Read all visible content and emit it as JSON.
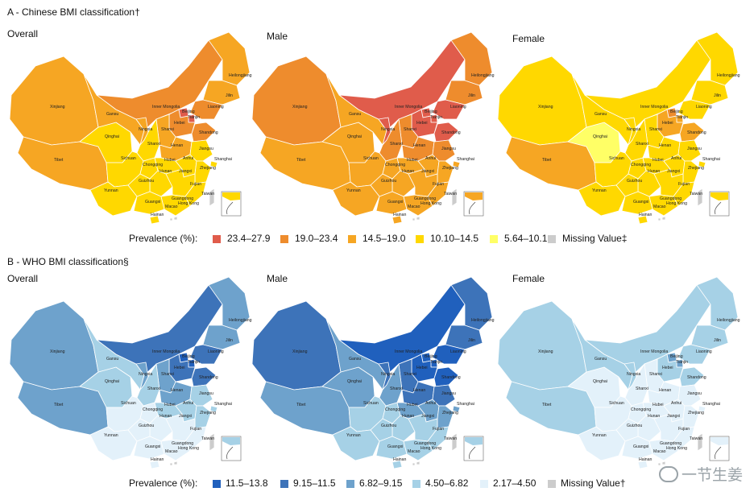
{
  "sections": [
    {
      "id": "A",
      "title": "A - Chinese BMI classification†",
      "maps": [
        {
          "title": "Overall",
          "fills": {
            "xinjiang": "#f6a623",
            "tibet": "#f6a623",
            "qinghai": "#ffd800",
            "gansu": "#f6a623",
            "inner": "#ee8c2d",
            "hlj": "#f6a623",
            "jilin": "#f6a623",
            "liaoning": "#ee8c2d",
            "beijing": "#e05c4b",
            "tianjin": "#e05c4b",
            "hebei": "#ee8c2d",
            "shandong": "#ee8c2d",
            "shanxi": "#f6a623",
            "ningxia": "#f6a623",
            "shaanxi": "#ffd800",
            "henan": "#f6a623",
            "sichuan": "#ffd800",
            "chongqing": "#ffd800",
            "hubei": "#ffd800",
            "anhui": "#ffd800",
            "jiangsu": "#ffd800",
            "shanghai": "#ffd800",
            "zhejiang": "#ffd800",
            "hunan": "#ffd800",
            "jiangxi": "#ffd800",
            "guizhou": "#ffd800",
            "yunnan": "#ffd800",
            "guangxi": "#ffd800",
            "guangdong": "#ffd800",
            "fujian": "#ffd800",
            "hainan": "#ffd800",
            "taiwan": "#cccccc",
            "hongkong": "#cccccc",
            "macao": "#cccccc",
            "scs": "#ffd800"
          }
        },
        {
          "title": "Male",
          "fills": {
            "xinjiang": "#ee8c2d",
            "tibet": "#f6a623",
            "qinghai": "#f6a623",
            "gansu": "#f6a623",
            "inner": "#e05c4b",
            "hlj": "#ee8c2d",
            "jilin": "#ee8c2d",
            "liaoning": "#e05c4b",
            "beijing": "#e05c4b",
            "tianjin": "#e05c4b",
            "hebei": "#e05c4b",
            "shandong": "#e05c4b",
            "shanxi": "#ee8c2d",
            "ningxia": "#e05c4b",
            "shaanxi": "#ee8c2d",
            "henan": "#ee8c2d",
            "sichuan": "#f6a623",
            "chongqing": "#f6a623",
            "hubei": "#f6a623",
            "anhui": "#f6a623",
            "jiangsu": "#ee8c2d",
            "shanghai": "#f6a623",
            "zhejiang": "#f6a623",
            "hunan": "#f6a623",
            "jiangxi": "#f6a623",
            "guizhou": "#f6a623",
            "yunnan": "#f6a623",
            "guangxi": "#f6a623",
            "guangdong": "#f6a623",
            "fujian": "#f6a623",
            "hainan": "#f6a623",
            "taiwan": "#cccccc",
            "hongkong": "#cccccc",
            "macao": "#cccccc",
            "scs": "#f6a623"
          }
        },
        {
          "title": "Female",
          "fills": {
            "xinjiang": "#ffd800",
            "tibet": "#f6a623",
            "qinghai": "#ffff66",
            "gansu": "#ffd800",
            "inner": "#ffd800",
            "hlj": "#ffd800",
            "jilin": "#ffd800",
            "liaoning": "#ffd800",
            "beijing": "#ee8c2d",
            "tianjin": "#f6a623",
            "hebei": "#f6a623",
            "shandong": "#f6a623",
            "shanxi": "#ffd800",
            "ningxia": "#ffd800",
            "shaanxi": "#ffd800",
            "henan": "#ffd800",
            "sichuan": "#ffd800",
            "chongqing": "#ffd800",
            "hubei": "#ffd800",
            "anhui": "#ffd800",
            "jiangsu": "#ffd800",
            "shanghai": "#ffd800",
            "zhejiang": "#ffd800",
            "hunan": "#ffd800",
            "jiangxi": "#ffd800",
            "guizhou": "#ffd800",
            "yunnan": "#ffd800",
            "guangxi": "#ffd800",
            "guangdong": "#ffd800",
            "fujian": "#ffd800",
            "hainan": "#ffd800",
            "taiwan": "#cccccc",
            "hongkong": "#cccccc",
            "macao": "#cccccc",
            "scs": "#ffd800"
          }
        }
      ],
      "legend": {
        "label": "Prevalence (%):",
        "items": [
          {
            "text": "23.4–27.9",
            "color": "#e05c4b"
          },
          {
            "text": "19.0–23.4",
            "color": "#ee8c2d"
          },
          {
            "text": "14.5–19.0",
            "color": "#f6a623"
          },
          {
            "text": "10.10–14.5",
            "color": "#ffd800"
          },
          {
            "text": "5.64–10.1",
            "color": "#ffff66"
          },
          {
            "text": "Missing Value‡",
            "color": "#cccccc"
          }
        ]
      }
    },
    {
      "id": "B",
      "title": "B - WHO BMI classification§",
      "maps": [
        {
          "title": "Overall",
          "fills": {
            "xinjiang": "#6ea2cc",
            "tibet": "#6ea2cc",
            "qinghai": "#a6d1e6",
            "gansu": "#a6d1e6",
            "inner": "#3d73b9",
            "hlj": "#6ea2cc",
            "jilin": "#6ea2cc",
            "liaoning": "#3d73b9",
            "beijing": "#2060bd",
            "tianjin": "#2060bd",
            "hebei": "#3d73b9",
            "shandong": "#3d73b9",
            "shanxi": "#6ea2cc",
            "ningxia": "#6ea2cc",
            "shaanxi": "#a6d1e6",
            "henan": "#6ea2cc",
            "sichuan": "#e3f1fa",
            "chongqing": "#e3f1fa",
            "hubei": "#a6d1e6",
            "anhui": "#a6d1e6",
            "jiangsu": "#a6d1e6",
            "shanghai": "#a6d1e6",
            "zhejiang": "#a6d1e6",
            "hunan": "#e3f1fa",
            "jiangxi": "#e3f1fa",
            "guizhou": "#e3f1fa",
            "yunnan": "#e3f1fa",
            "guangxi": "#e3f1fa",
            "guangdong": "#e3f1fa",
            "fujian": "#e3f1fa",
            "hainan": "#e3f1fa",
            "taiwan": "#cccccc",
            "hongkong": "#cccccc",
            "macao": "#cccccc",
            "scs": "#a6d1e6"
          }
        },
        {
          "title": "Male",
          "fills": {
            "xinjiang": "#3d73b9",
            "tibet": "#6ea2cc",
            "qinghai": "#6ea2cc",
            "gansu": "#6ea2cc",
            "inner": "#2060bd",
            "hlj": "#3d73b9",
            "jilin": "#3d73b9",
            "liaoning": "#2060bd",
            "beijing": "#2060bd",
            "tianjin": "#2060bd",
            "hebei": "#2060bd",
            "shandong": "#2060bd",
            "shanxi": "#3d73b9",
            "ningxia": "#3d73b9",
            "shaanxi": "#6ea2cc",
            "henan": "#3d73b9",
            "sichuan": "#a6d1e6",
            "chongqing": "#a6d1e6",
            "hubei": "#6ea2cc",
            "anhui": "#6ea2cc",
            "jiangsu": "#3d73b9",
            "shanghai": "#6ea2cc",
            "zhejiang": "#6ea2cc",
            "hunan": "#a6d1e6",
            "jiangxi": "#a6d1e6",
            "guizhou": "#a6d1e6",
            "yunnan": "#a6d1e6",
            "guangxi": "#a6d1e6",
            "guangdong": "#a6d1e6",
            "fujian": "#a6d1e6",
            "hainan": "#a6d1e6",
            "taiwan": "#cccccc",
            "hongkong": "#cccccc",
            "macao": "#cccccc",
            "scs": "#a6d1e6"
          }
        },
        {
          "title": "Female",
          "fills": {
            "xinjiang": "#a6d1e6",
            "tibet": "#a6d1e6",
            "qinghai": "#e3f1fa",
            "gansu": "#a6d1e6",
            "inner": "#a6d1e6",
            "hlj": "#a6d1e6",
            "jilin": "#a6d1e6",
            "liaoning": "#a6d1e6",
            "beijing": "#6ea2cc",
            "tianjin": "#6ea2cc",
            "hebei": "#a6d1e6",
            "shandong": "#a6d1e6",
            "shanxi": "#e3f1fa",
            "ningxia": "#a6d1e6",
            "shaanxi": "#e3f1fa",
            "henan": "#e3f1fa",
            "sichuan": "#e3f1fa",
            "chongqing": "#e3f1fa",
            "hubei": "#e3f1fa",
            "anhui": "#e3f1fa",
            "jiangsu": "#e3f1fa",
            "shanghai": "#e3f1fa",
            "zhejiang": "#e3f1fa",
            "hunan": "#e3f1fa",
            "jiangxi": "#e3f1fa",
            "guizhou": "#e3f1fa",
            "yunnan": "#e3f1fa",
            "guangxi": "#e3f1fa",
            "guangdong": "#e3f1fa",
            "fujian": "#e3f1fa",
            "hainan": "#e3f1fa",
            "taiwan": "#cccccc",
            "hongkong": "#cccccc",
            "macao": "#cccccc",
            "scs": "#e3f1fa"
          }
        }
      ],
      "legend": {
        "label": "Prevalence (%):",
        "items": [
          {
            "text": "11.5–13.8",
            "color": "#2060bd"
          },
          {
            "text": "9.15–11.5",
            "color": "#3d73b9"
          },
          {
            "text": "6.82–9.15",
            "color": "#6ea2cc"
          },
          {
            "text": "4.50–6.82",
            "color": "#a6d1e6"
          },
          {
            "text": "2.17–4.50",
            "color": "#e3f1fa"
          },
          {
            "text": "Missing Value†",
            "color": "#cccccc"
          }
        ]
      }
    }
  ],
  "provinces": [
    {
      "id": "xinjiang",
      "name": "Xinjiang"
    },
    {
      "id": "tibet",
      "name": "Tibet"
    },
    {
      "id": "qinghai",
      "name": "Qinghai"
    },
    {
      "id": "gansu",
      "name": "Gansu"
    },
    {
      "id": "inner",
      "name": "Inner Mongolia"
    },
    {
      "id": "hlj",
      "name": "Heilongjiang"
    },
    {
      "id": "jilin",
      "name": "Jilin"
    },
    {
      "id": "liaoning",
      "name": "Liaoning"
    },
    {
      "id": "beijing",
      "name": "Beijing"
    },
    {
      "id": "tianjin",
      "name": "Tianjin"
    },
    {
      "id": "hebei",
      "name": "Hebei"
    },
    {
      "id": "shandong",
      "name": "Shandong"
    },
    {
      "id": "shanxi",
      "name": "Shanxi"
    },
    {
      "id": "ningxia",
      "name": "Ningxia"
    },
    {
      "id": "shaanxi",
      "name": "Shanxi"
    },
    {
      "id": "henan",
      "name": "Henan"
    },
    {
      "id": "sichuan",
      "name": "Sichuan"
    },
    {
      "id": "chongqing",
      "name": "Chongqing"
    },
    {
      "id": "hubei",
      "name": "Hubei"
    },
    {
      "id": "anhui",
      "name": "Anhui"
    },
    {
      "id": "jiangsu",
      "name": "Jiangsu"
    },
    {
      "id": "shanghai",
      "name": "Shanghai"
    },
    {
      "id": "zhejiang",
      "name": "Zhejiang"
    },
    {
      "id": "hunan",
      "name": "Hunan"
    },
    {
      "id": "jiangxi",
      "name": "Jiangxi"
    },
    {
      "id": "guizhou",
      "name": "Guizhou"
    },
    {
      "id": "yunnan",
      "name": "Yunnan"
    },
    {
      "id": "guangxi",
      "name": "Guangxi"
    },
    {
      "id": "guangdong",
      "name": "Guangdong"
    },
    {
      "id": "fujian",
      "name": "Fujian"
    },
    {
      "id": "hainan",
      "name": "Hainan"
    },
    {
      "id": "taiwan",
      "name": "Taiwan"
    },
    {
      "id": "hongkong",
      "name": "Hong Kong"
    },
    {
      "id": "macao",
      "name": "Macao"
    }
  ],
  "watermark": "一节生姜"
}
